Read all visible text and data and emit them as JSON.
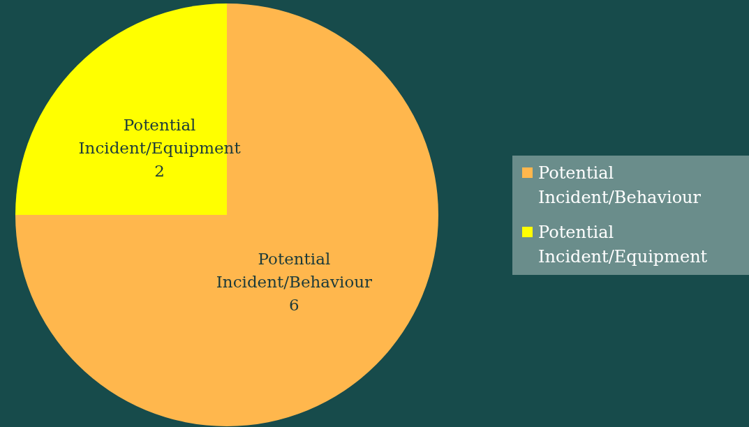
{
  "chart_data": {
    "type": "pie",
    "categories": [
      "Potential Incident/Behaviour",
      "Potential Incident/Equipment"
    ],
    "values": [
      6,
      2
    ],
    "colors": [
      "#ffb74d",
      "#ffff00"
    ],
    "data_labels": true,
    "legend": "right"
  }
}
